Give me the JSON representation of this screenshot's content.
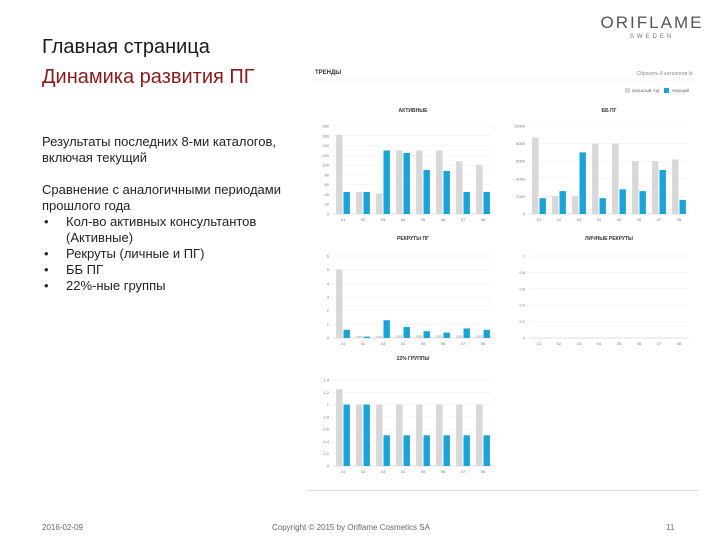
{
  "logo": {
    "brand": "ORIFLAME",
    "sub": "SWEDEN"
  },
  "slide": {
    "title": "Главная страница",
    "subtitle": "Динамика развития ПГ",
    "para1": "Результаты последних 8-ми каталогов, включая текущий",
    "para2": "Сравнение с аналогичными периодами прошлого года",
    "bullets": [
      "Кол-во активных консультантов (Активные)",
      "Рекруты (личные и ПГ)",
      "ББ ПГ",
      "22%-ные группы"
    ]
  },
  "panel": {
    "title": "ТРЕНДЫ",
    "header_right": "Сбросить 8 каталогов",
    "legend": [
      "прошлый год",
      "текущий"
    ]
  },
  "colors": {
    "current": "#1aa3d6",
    "previous": "#d8d8d8"
  },
  "chart_data": [
    {
      "type": "bar",
      "title": "АКТИВНЫЕ",
      "categories": [
        "01",
        "02",
        "03",
        "04",
        "05",
        "06",
        "07",
        "08"
      ],
      "ylim": [
        0,
        180
      ],
      "yticks": [
        0,
        20,
        40,
        60,
        80,
        100,
        120,
        140,
        160,
        180
      ],
      "series": [
        {
          "name": "прошлый год",
          "values": [
            162,
            45,
            42,
            130,
            130,
            130,
            108,
            100
          ]
        },
        {
          "name": "текущий",
          "values": [
            45,
            45,
            130,
            125,
            90,
            88,
            45,
            45
          ]
        }
      ]
    },
    {
      "type": "bar",
      "title": "ББ ПГ",
      "categories": [
        "01",
        "02",
        "03",
        "04",
        "05",
        "06",
        "07",
        "08"
      ],
      "ylim": [
        0,
        10000
      ],
      "yticks": [
        0,
        2000,
        4000,
        6000,
        8000,
        10000
      ],
      "series": [
        {
          "name": "прошлый год",
          "values": [
            8700,
            2000,
            2000,
            8000,
            8000,
            6000,
            6000,
            6200
          ]
        },
        {
          "name": "текущий",
          "values": [
            1800,
            2600,
            7000,
            1800,
            2800,
            2600,
            5000,
            1600
          ]
        }
      ]
    },
    {
      "type": "bar",
      "title": "РЕКРУТЫ ПГ",
      "categories": [
        "01",
        "02",
        "03",
        "04",
        "05",
        "06",
        "07",
        "08"
      ],
      "ylim": [
        0,
        6
      ],
      "yticks": [
        0,
        1,
        2,
        3,
        4,
        5,
        6
      ],
      "series": [
        {
          "name": "прошлый год",
          "values": [
            5,
            0.15,
            0.15,
            0.2,
            0.2,
            0.2,
            0.2,
            0.2
          ]
        },
        {
          "name": "текущий",
          "values": [
            0.6,
            0.1,
            1.3,
            0.8,
            0.5,
            0.4,
            0.7,
            0.6
          ]
        }
      ]
    },
    {
      "type": "bar",
      "title": "ЛИЧНЫЕ РЕКРУТЫ",
      "categories": [
        "01",
        "02",
        "03",
        "04",
        "05",
        "06",
        "07",
        "08"
      ],
      "ylim": [
        0,
        1
      ],
      "yticks": [
        0,
        0.2,
        0.4,
        0.6,
        0.8,
        1
      ],
      "series": [
        {
          "name": "прошлый год",
          "values": [
            0,
            0,
            0,
            0,
            0,
            0,
            0,
            0
          ]
        },
        {
          "name": "текущий",
          "values": [
            0,
            0,
            0,
            0,
            0,
            0,
            0,
            0
          ]
        }
      ]
    },
    {
      "type": "bar",
      "title": "22% ГРУППЫ",
      "categories": [
        "01",
        "02",
        "03",
        "04",
        "05",
        "06",
        "07",
        "08"
      ],
      "ylim": [
        0,
        1.4
      ],
      "yticks": [
        0,
        0.2,
        0.4,
        0.6,
        0.8,
        1,
        1.2,
        1.4
      ],
      "series": [
        {
          "name": "прошлый год",
          "values": [
            1.25,
            1.0,
            1.0,
            1.0,
            1.0,
            1.0,
            1.0,
            1.0
          ]
        },
        {
          "name": "текущий",
          "values": [
            1.0,
            1.0,
            0.5,
            0.5,
            0.5,
            0.5,
            0.5,
            0.5
          ]
        }
      ]
    }
  ],
  "footer": {
    "date": "2016-02-09",
    "copyright": "Copyright © 2015 by Oriflame Cosmetics SA",
    "page": "11"
  }
}
